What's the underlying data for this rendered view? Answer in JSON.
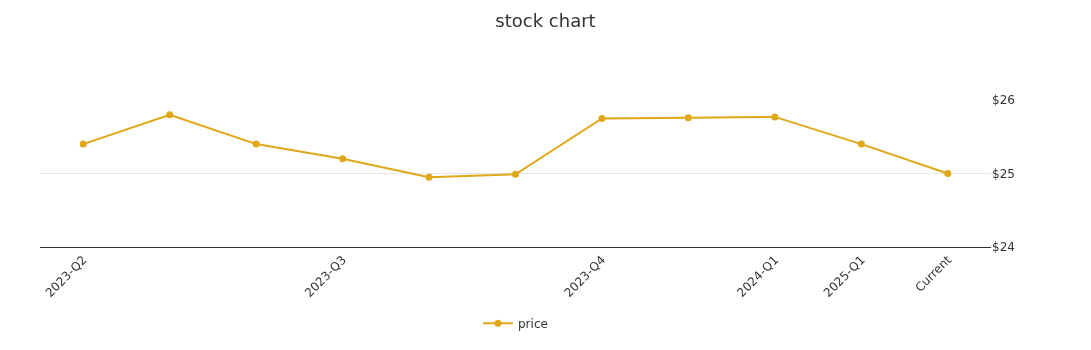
{
  "chart_data": {
    "type": "line",
    "title": "stock chart",
    "categories": [
      "2023-Q2",
      null,
      null,
      "2023-Q3",
      null,
      null,
      "2023-Q4",
      null,
      "2024-Q1",
      "2025-Q1",
      "Current"
    ],
    "series": [
      {
        "name": "price",
        "color": "#e0a817",
        "values": [
          25.4,
          25.8,
          25.4,
          25.2,
          24.95,
          24.99,
          25.75,
          25.76,
          25.77,
          25.4,
          25.0
        ]
      }
    ],
    "ylim": [
      24,
      26
    ],
    "yticks": [
      {
        "value": 24,
        "label": "$24"
      },
      {
        "value": 25,
        "label": "$25"
      },
      {
        "value": 26,
        "label": "$26"
      }
    ],
    "grid": "y",
    "legend": "bottom",
    "marker": "circle",
    "line_style": "solid"
  }
}
